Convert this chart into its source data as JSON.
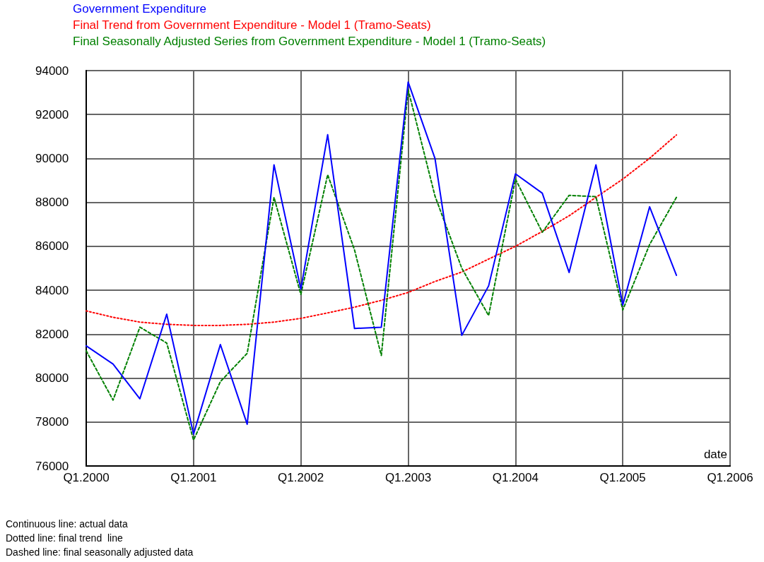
{
  "chart_data": {
    "type": "line",
    "xlabel": "date",
    "categories": [
      "Q1.2000",
      null,
      null,
      null,
      "Q1.2001",
      null,
      null,
      null,
      "Q1.2002",
      null,
      null,
      null,
      "Q1.2003",
      null,
      null,
      null,
      "Q1.2004",
      null,
      null,
      null,
      "Q1.2005",
      null,
      null,
      null,
      "Q1.2006"
    ],
    "series": [
      {
        "name": "Government Expenditure",
        "color": "#0000ff",
        "line_style": "solid",
        "values": [
          81470,
          80640,
          79060,
          82910,
          77450,
          81530,
          77900,
          89710,
          84050,
          91080,
          82260,
          82320,
          93480,
          90000,
          81950,
          84200,
          89300,
          88420,
          84810,
          89710,
          83330,
          87800,
          84680,
          null,
          null
        ]
      },
      {
        "name": "Final Trend from Government Expenditure - Model 1 (Tramo-Seats)",
        "color": "#ff0000",
        "line_style": "dotted",
        "values": [
          83060,
          82770,
          82550,
          82450,
          82400,
          82400,
          82450,
          82550,
          82720,
          82970,
          83230,
          83540,
          83900,
          84400,
          84830,
          85420,
          86000,
          86680,
          87390,
          88230,
          89060,
          90010,
          91070,
          null,
          null
        ]
      },
      {
        "name": "Final Seasonally Adjusted Series from Government Expenditure - Model 1 (Tramo-Seats)",
        "color": "#008000",
        "line_style": "dashed",
        "values": [
          81240,
          79000,
          82320,
          81600,
          77180,
          79840,
          81130,
          88230,
          83810,
          89260,
          85840,
          81030,
          93130,
          88290,
          85000,
          82850,
          89060,
          86640,
          88320,
          88260,
          83100,
          86080,
          88230,
          null,
          null
        ]
      }
    ],
    "ylim": [
      76000,
      94000
    ],
    "yticks": [
      76000,
      78000,
      80000,
      82000,
      84000,
      86000,
      88000,
      90000,
      92000,
      94000
    ],
    "grid": true,
    "legend": "top left",
    "marker": "none",
    "annotations": [
      "Continuous line: actual data",
      "Dotted line: final trend  line",
      "Dashed line: final seasonally adjusted data"
    ]
  }
}
